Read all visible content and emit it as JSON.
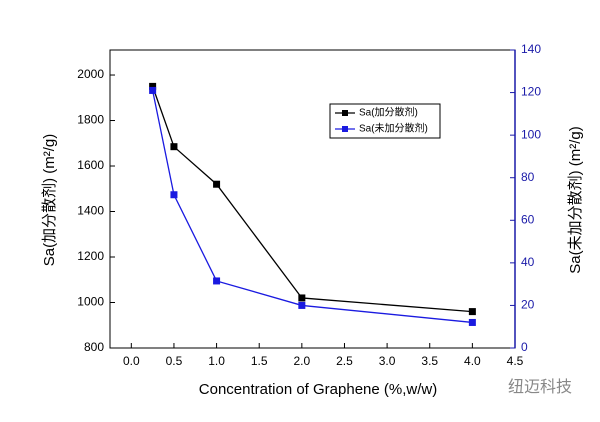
{
  "chart_data": {
    "type": "line",
    "x_label": "Concentration of Graphene (%,w/w)",
    "y_label": "Sa(加分散剂) (m²/g)",
    "y2_label": "Sa(未加分散剂) (m²/g)",
    "watermark": "纽迈科技",
    "xlim": [
      -0.25,
      4.5
    ],
    "xticks": [
      {
        "value": 0,
        "label": "0.0"
      },
      0.5,
      {
        "value": 1,
        "label": "1.0"
      },
      1.5,
      {
        "value": 2,
        "label": "2.0"
      },
      2.5,
      {
        "value": 3,
        "label": "3.0"
      },
      3.5,
      {
        "value": 4,
        "label": "4.0"
      },
      4.5
    ],
    "ylim": [
      800,
      2110
    ],
    "yticks": [
      800,
      1000,
      1200,
      1400,
      1600,
      1800,
      2000
    ],
    "y2lim": [
      0,
      140
    ],
    "y2ticks": [
      0,
      20,
      40,
      60,
      80,
      100,
      120,
      140
    ],
    "y2_color": "#1a1aa8",
    "legend": "upper right",
    "series": [
      {
        "name": "Sa(加分散剂)",
        "color": "#000000",
        "x": [
          0.25,
          0.5,
          1.0,
          2.0,
          4.0
        ],
        "values": [
          1950,
          1685,
          1520,
          1020,
          960
        ]
      },
      {
        "name": "Sa(未加分散剂)",
        "color": "#1a1ae0",
        "axis": "y2",
        "x": [
          0.25,
          0.5,
          1.0,
          2.0,
          4.0
        ],
        "values": [
          121,
          72,
          31.5,
          20,
          12
        ]
      }
    ]
  }
}
